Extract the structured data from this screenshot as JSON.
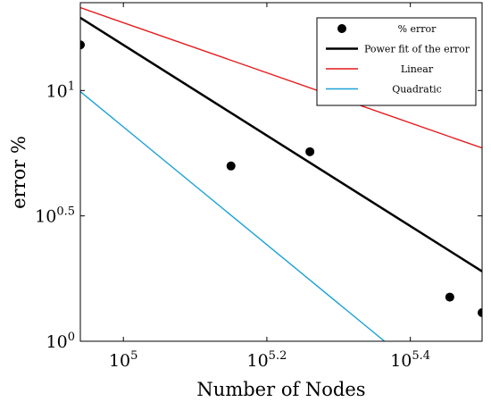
{
  "chart_data": {
    "type": "scatter",
    "xlabel": "Number of Nodes",
    "ylabel": "error %",
    "x_scale": "log10",
    "y_scale": "log10",
    "xlim": [
      87096,
      316228
    ],
    "ylim": [
      1.0,
      22.4
    ],
    "x_ticks": [
      {
        "value": 100000,
        "base": "10",
        "exp": "5"
      },
      {
        "value": 158489,
        "base": "10",
        "exp": "5.2"
      },
      {
        "value": 251189,
        "base": "10",
        "exp": "5.4"
      }
    ],
    "y_ticks": [
      {
        "value": 1.0,
        "base": "10",
        "exp": "0"
      },
      {
        "value": 3.162,
        "base": "10",
        "exp": "0.5"
      },
      {
        "value": 10.0,
        "base": "10",
        "exp": "1"
      }
    ],
    "grid": false,
    "legend_position": "top-right",
    "series": [
      {
        "name": "% error",
        "kind": "markers",
        "color": "#000000",
        "points": [
          {
            "x": 87096,
            "y": 15.2
          },
          {
            "x": 141254,
            "y": 5.0
          },
          {
            "x": 181970,
            "y": 5.7
          },
          {
            "x": 285102,
            "y": 1.5
          },
          {
            "x": 316228,
            "y": 1.3
          }
        ]
      },
      {
        "name": "Power fit of the error",
        "kind": "line",
        "color": "#000000",
        "width": 2.5,
        "points": [
          {
            "x": 87096,
            "y": 19.5
          },
          {
            "x": 316228,
            "y": 1.9
          }
        ]
      },
      {
        "name": "Linear",
        "kind": "line",
        "color": "#e41a1c",
        "width": 1.4,
        "points": [
          {
            "x": 87096,
            "y": 21.4
          },
          {
            "x": 316228,
            "y": 5.9
          }
        ]
      },
      {
        "name": "Quadratic",
        "kind": "line",
        "color": "#1ba1d6",
        "width": 1.4,
        "points": [
          {
            "x": 87096,
            "y": 9.9
          },
          {
            "x": 231206,
            "y": 1.0
          }
        ]
      }
    ]
  }
}
